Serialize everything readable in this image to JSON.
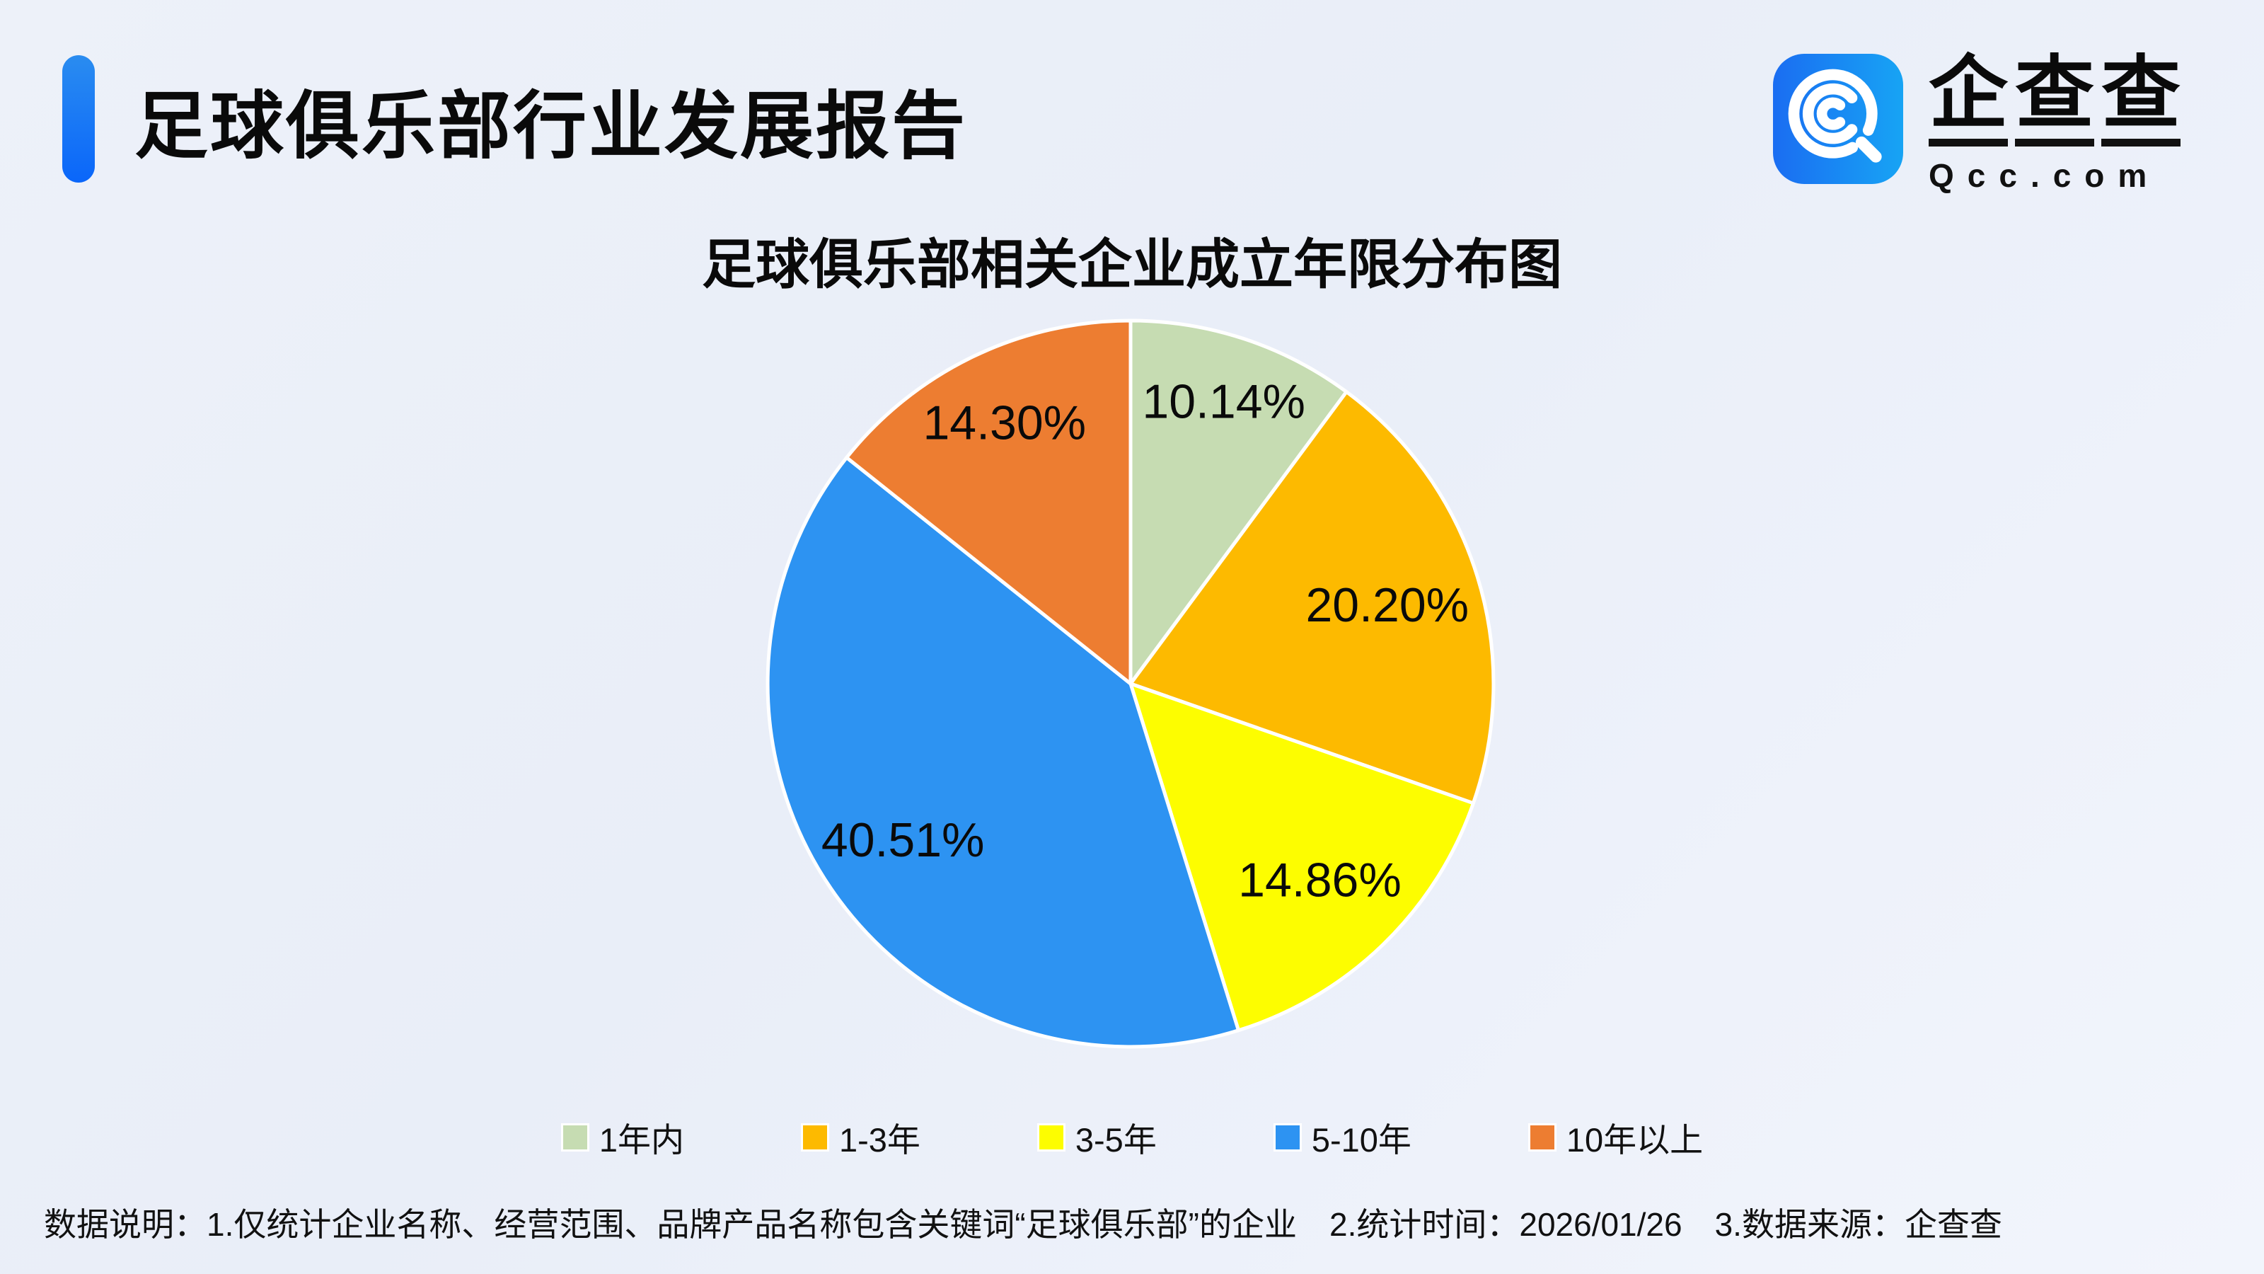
{
  "header": {
    "title": "足球俱乐部行业发展报告",
    "accent_color": "#0a66fa"
  },
  "logo": {
    "brand_chars": {
      "c0": "企",
      "c1": "查",
      "c2": "查"
    },
    "brand": "企查查",
    "domain": "Qcc.com",
    "icon_color_left": "#1a6df2",
    "icon_color_right": "#17a4f4"
  },
  "chart_data": {
    "type": "pie",
    "title": "足球俱乐部相关企业成立年限分布图",
    "categories": [
      "1年内",
      "1-3年",
      "3-5年",
      "5-10年",
      "10年以上"
    ],
    "values": [
      10.14,
      20.2,
      14.86,
      40.51,
      14.3
    ],
    "labels": [
      "10.14%",
      "20.20%",
      "14.86%",
      "40.51%",
      "14.30%"
    ],
    "colors": [
      "#c6dcb2",
      "#fdba00",
      "#fdfd00",
      "#2d93f2",
      "#ed7d31"
    ],
    "start_angle_deg": 0,
    "direction": "clockwise",
    "label_radius": [
      0.82,
      0.74,
      0.75,
      0.76,
      0.8
    ],
    "slice_border_color": "#ffffff",
    "legend_position": "bottom",
    "grid": false
  },
  "footer": {
    "note": "数据说明：1.仅统计企业名称、经营范围、品牌产品名称包含关键词“足球俱乐部”的企业　2.统计时间：2026/01/26　3.数据来源：企查查"
  }
}
